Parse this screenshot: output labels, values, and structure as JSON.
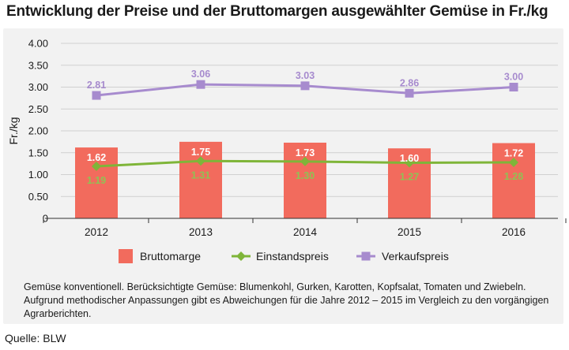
{
  "title": "Entwicklung der Preise und der Bruttomargen ausgewählter Gemüse in Fr./kg",
  "colors": {
    "bar": "#f26b5d",
    "einstand": "#7fb539",
    "verkauf": "#a78bce",
    "grid": "#d0d0d0",
    "axis": "#333333"
  },
  "chart_data": {
    "type": "bar",
    "title": "Entwicklung der Preise und der Bruttomargen ausgewählter Gemüse in Fr./kg",
    "xlabel": "",
    "ylabel": "Fr./kg",
    "ylim": [
      0,
      4.0
    ],
    "yticks": [
      0,
      0.5,
      1.0,
      1.5,
      2.0,
      2.5,
      3.0,
      3.5,
      4.0
    ],
    "ytick_labels": [
      "0",
      "0.50",
      "1.00",
      "1.50",
      "2.00",
      "2.50",
      "3.00",
      "3.50",
      "4.00"
    ],
    "grid": true,
    "legend": "bottom",
    "categories": [
      "2012",
      "2013",
      "2014",
      "2015",
      "2016"
    ],
    "series": [
      {
        "name": "Bruttomarge",
        "type": "bar",
        "values": [
          1.62,
          1.75,
          1.73,
          1.6,
          1.72
        ],
        "labels": [
          "1.62",
          "1.75",
          "1.73",
          "1.60",
          "1.72"
        ]
      },
      {
        "name": "Einstandspreis",
        "type": "line",
        "values": [
          1.19,
          1.31,
          1.3,
          1.27,
          1.28
        ],
        "labels": [
          "1.19",
          "1.31",
          "1.30",
          "1.27",
          "1.28"
        ]
      },
      {
        "name": "Verkaufspreis",
        "type": "line",
        "values": [
          2.81,
          3.06,
          3.03,
          2.86,
          3.0
        ],
        "labels": [
          "2.81",
          "3.06",
          "3.03",
          "2.86",
          "3.00"
        ]
      }
    ]
  },
  "note": {
    "line1": "Gemüse konventionell. Berücksichtigte Gemüse: Blumenkohl, Gurken, Karotten, Kopfsalat, Tomaten und Zwiebeln.",
    "line2": "Aufgrund methodischer Anpassungen gibt es Abweichungen für die Jahre 2012 – 2015 im Vergleich zu den vorgängigen",
    "line3": "Agrarberichten."
  },
  "source": "Quelle: BLW"
}
